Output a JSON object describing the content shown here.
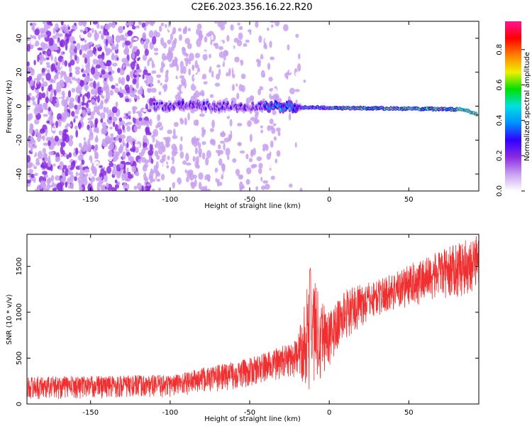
{
  "figure": {
    "title": "C2E6.2023.356.16.22.R20"
  },
  "chart_data": [
    {
      "type": "heatmap",
      "xlabel": "Height of straight line (km)",
      "ylabel": "Frequency (Hz)",
      "xlim": [
        -190,
        94
      ],
      "ylim": [
        -50,
        50
      ],
      "xticks": [
        -150,
        -100,
        -50,
        0,
        50
      ],
      "yticks": [
        -40,
        -20,
        0,
        20,
        40
      ],
      "colorbar": {
        "label": "Normalized spectral amplitude",
        "range": [
          0,
          0.96
        ],
        "ticks": [
          0.0,
          0.2,
          0.4,
          0.6,
          0.8
        ],
        "tick_labels": [
          "0.0",
          "0.2",
          "0.4",
          "0.6",
          "0.8"
        ],
        "colormap": [
          "#ffffff",
          "#c8a0f0",
          "#8a2be2",
          "#3000ff",
          "#0090ff",
          "#00e0e0",
          "#00e000",
          "#f0f000",
          "#ff8000",
          "#ff0000",
          "#ff1493"
        ]
      },
      "ridge": {
        "description_values": [
          {
            "x": -100,
            "freq": 0
          },
          {
            "x": -50,
            "freq": 0
          },
          {
            "x": 0,
            "freq": -1
          },
          {
            "x": 50,
            "freq": -1.5
          },
          {
            "x": 85,
            "freq": -2
          },
          {
            "x": 93,
            "freq": -5
          }
        ]
      }
    },
    {
      "type": "line",
      "xlabel": "Height of straight line (km)",
      "ylabel": "SNR (10 * v/v)",
      "xlim": [
        -190,
        94
      ],
      "ylim": [
        0,
        1850
      ],
      "xticks": [
        -150,
        -100,
        -50,
        0,
        50
      ],
      "yticks": [
        0,
        500,
        1000,
        1500
      ],
      "color": "#f03030",
      "trend": [
        {
          "x": -190,
          "low": 50,
          "high": 300
        },
        {
          "x": -100,
          "low": 70,
          "high": 320
        },
        {
          "x": -50,
          "low": 180,
          "high": 500
        },
        {
          "x": -20,
          "low": 300,
          "high": 700
        },
        {
          "x": -12,
          "low": 120,
          "high": 1480
        },
        {
          "x": 0,
          "low": 400,
          "high": 1000
        },
        {
          "x": 10,
          "low": 700,
          "high": 1250
        },
        {
          "x": 30,
          "low": 950,
          "high": 1350
        },
        {
          "x": 60,
          "low": 1100,
          "high": 1600
        },
        {
          "x": 94,
          "low": 1200,
          "high": 1850
        }
      ]
    }
  ]
}
